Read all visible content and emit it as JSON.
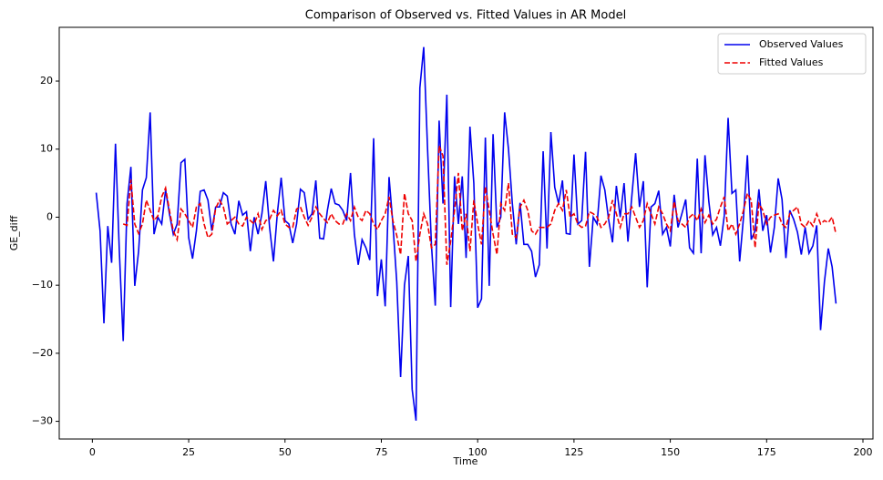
{
  "chart_data": {
    "type": "line",
    "title": "Comparison of Observed vs. Fitted Values in AR Model",
    "x_label": "Time",
    "y_label": "GE_diff",
    "x": [
      1,
      2,
      3,
      4,
      5,
      6,
      7,
      8,
      9,
      10,
      11,
      12,
      13,
      14,
      15,
      16,
      17,
      18,
      19,
      20,
      21,
      22,
      23,
      24,
      25,
      26,
      27,
      28,
      29,
      30,
      31,
      32,
      33,
      34,
      35,
      36,
      37,
      38,
      39,
      40,
      41,
      42,
      43,
      44,
      45,
      46,
      47,
      48,
      49,
      50,
      51,
      52,
      53,
      54,
      55,
      56,
      57,
      58,
      59,
      60,
      61,
      62,
      63,
      64,
      65,
      66,
      67,
      68,
      69,
      70,
      71,
      72,
      73,
      74,
      75,
      76,
      77,
      78,
      79,
      80,
      81,
      82,
      83,
      84,
      85,
      86,
      87,
      88,
      89,
      90,
      91,
      92,
      93,
      94,
      95,
      96,
      97,
      98,
      99,
      100,
      101,
      102,
      103,
      104,
      105,
      106,
      107,
      108,
      109,
      110,
      111,
      112,
      113,
      114,
      115,
      116,
      117,
      118,
      119,
      120,
      121,
      122,
      123,
      124,
      125,
      126,
      127,
      128,
      129,
      130,
      131,
      132,
      133,
      134,
      135,
      136,
      137,
      138,
      139,
      140,
      141,
      142,
      143,
      144,
      145,
      146,
      147,
      148,
      149,
      150,
      151,
      152,
      153,
      154,
      155,
      156,
      157,
      158,
      159,
      160,
      161,
      162,
      163,
      164,
      165,
      166,
      167,
      168,
      169,
      170,
      171,
      172,
      173,
      174,
      175,
      176,
      177,
      178,
      179,
      180,
      181,
      182,
      183,
      184,
      185,
      186,
      187,
      188,
      189,
      190,
      191,
      192,
      193
    ],
    "series": [
      {
        "name": "Observed Values",
        "color": "#0000ee",
        "style": "solid",
        "values": [
          3.6,
          -2,
          -15.6,
          -1.3,
          -6.7,
          10.8,
          -5,
          -18.2,
          2,
          7.4,
          -10.1,
          -5,
          4,
          5.8,
          15.4,
          -2.5,
          0,
          -1,
          4,
          0.5,
          -2.5,
          -1,
          8,
          8.5,
          -3,
          -6.1,
          -2,
          3.8,
          4,
          2.5,
          -2,
          1.5,
          1.5,
          3.6,
          3.1,
          -1,
          -2.5,
          2.4,
          0.3,
          0.8,
          -5,
          0,
          -2.5,
          0.5,
          5.3,
          -1.5,
          -6.5,
          0.5,
          5.8,
          -0.5,
          -1,
          -3.8,
          -1,
          4.1,
          3.6,
          -0.3,
          0.5,
          5.4,
          -3.1,
          -3.2,
          1,
          4.2,
          2,
          1.8,
          1,
          -0.5,
          6.5,
          -2.5,
          -7,
          -3.3,
          -4.5,
          -6.3,
          11.6,
          -11.6,
          -6.2,
          -13.1,
          5.9,
          -1,
          -9.5,
          -23.5,
          -10,
          -5.7,
          -25.3,
          -29.9,
          19,
          25,
          10,
          -4,
          -13,
          14.2,
          2,
          18,
          -13.2,
          6,
          -1,
          6,
          -6,
          13.3,
          5,
          -13.3,
          -12,
          11.7,
          -10.1,
          12.2,
          -1.5,
          0,
          15.4,
          10,
          2,
          -4,
          2.1,
          -4,
          -4,
          -5,
          -8.8,
          -7,
          9.7,
          -4.6,
          12.5,
          4.4,
          2,
          5.4,
          -2.4,
          -2.5,
          9.2,
          -1,
          -0.5,
          9.6,
          -7.3,
          0,
          -1,
          6.1,
          4,
          -0.4,
          -3.7,
          4.6,
          0,
          5,
          -3.6,
          3,
          9.4,
          1.5,
          5.3,
          -10.3,
          1.5,
          2,
          3.9,
          -2.5,
          -1.5,
          -4.3,
          3.3,
          -1.5,
          0.5,
          2.6,
          -4.5,
          -5.3,
          8.6,
          -5.3,
          9.1,
          2.3,
          -2.6,
          -1.5,
          -4.2,
          0.2,
          14.6,
          3.5,
          4,
          -6.5,
          0,
          9.1,
          -3.3,
          -2,
          4.1,
          -2,
          0.3,
          -5.2,
          -1.5,
          5.7,
          2.6,
          -6,
          1,
          -0.3,
          -2.2,
          -5.5,
          -1.5,
          -5.3,
          -4.2,
          -1.2,
          -16.6,
          -9.5,
          -4.6,
          -7.3,
          -12.7
        ]
      },
      {
        "name": "Fitted Values",
        "color": "#ee0000",
        "style": "dashed",
        "values": [
          null,
          null,
          null,
          null,
          null,
          null,
          null,
          -1,
          -1.2,
          5.5,
          -1,
          -2.4,
          -1,
          2.5,
          1,
          -0.5,
          0.2,
          3,
          4.3,
          1,
          -2,
          -3.3,
          1.2,
          0.5,
          -0.5,
          -1.5,
          1.5,
          2,
          -1,
          -3,
          -2.5,
          1.3,
          2.5,
          1.5,
          -1,
          -0.5,
          0,
          -1,
          -1.3,
          0,
          -0.5,
          -1,
          0.5,
          -1.8,
          -0.5,
          -0.3,
          1,
          0.2,
          1,
          -1,
          -1.5,
          -1.5,
          1.2,
          1.5,
          0,
          -1.2,
          0,
          1.5,
          0.5,
          -0.2,
          -0.8,
          0.5,
          -0.5,
          -1,
          -1,
          0.5,
          -0.5,
          1.5,
          0,
          -0.5,
          1,
          0.5,
          -1,
          -1.8,
          -0.5,
          0.5,
          3,
          -0.5,
          -2.7,
          -5.5,
          3.5,
          0.5,
          -0.5,
          -6.5,
          -2.5,
          0.5,
          -1,
          -4.5,
          -4,
          10.5,
          9,
          -7,
          -3.5,
          1,
          6.5,
          -2,
          0.5,
          -5,
          2.5,
          -1,
          -4,
          4.5,
          1,
          -2.5,
          -5.5,
          2,
          1,
          5,
          -2.5,
          -3,
          1.5,
          2.5,
          1,
          -2,
          -2.5,
          -1.5,
          -1.5,
          -1.5,
          -1,
          1,
          2,
          1,
          4,
          0,
          0.5,
          -1,
          -1.5,
          -1.3,
          0.8,
          0.5,
          0,
          -1.5,
          -1,
          0,
          2.5,
          0.5,
          -1.5,
          0.5,
          0.5,
          1.5,
          0,
          -1.5,
          -0.5,
          2,
          0.5,
          -1,
          1.5,
          0.5,
          -1,
          -2,
          2.3,
          -0.5,
          -1,
          -1.5,
          0,
          0.5,
          -0.5,
          1.2,
          -0.8,
          0.3,
          -1,
          -0.3,
          1.5,
          3,
          -2,
          -1,
          -2.5,
          -1,
          1,
          3.5,
          2.5,
          -4.5,
          2,
          1,
          -1,
          0,
          0.3,
          0.5,
          -1,
          -1.5,
          0.5,
          1,
          1.5,
          -1,
          -1.5,
          -0.5,
          -1.3,
          0.5,
          -1,
          -0.5,
          -0.8,
          0,
          -2.5
        ]
      }
    ],
    "xlim": [
      -8.6,
      202.6
    ],
    "ylim": [
      -32.6,
      27.9
    ],
    "xticks": [
      0,
      25,
      50,
      75,
      100,
      125,
      150,
      175,
      200
    ],
    "yticks": [
      {
        "value": -30,
        "label": "−30"
      },
      {
        "value": -20,
        "label": "−20"
      },
      {
        "value": -10,
        "label": "−10"
      },
      0,
      10,
      20
    ],
    "grid": false,
    "legend": "upper right"
  }
}
